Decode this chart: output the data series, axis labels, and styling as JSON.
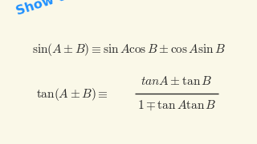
{
  "background_color": "#faf8e8",
  "show_that_text": "Show that:",
  "show_that_color": "#1e90ff",
  "show_that_fontsize": 11.5,
  "show_that_rotation": 18,
  "formula_color": "#2a2a2a",
  "formula1_fontsize": 11,
  "formula2_fontsize": 11,
  "fig_width": 3.2,
  "fig_height": 1.8,
  "dpi": 100
}
